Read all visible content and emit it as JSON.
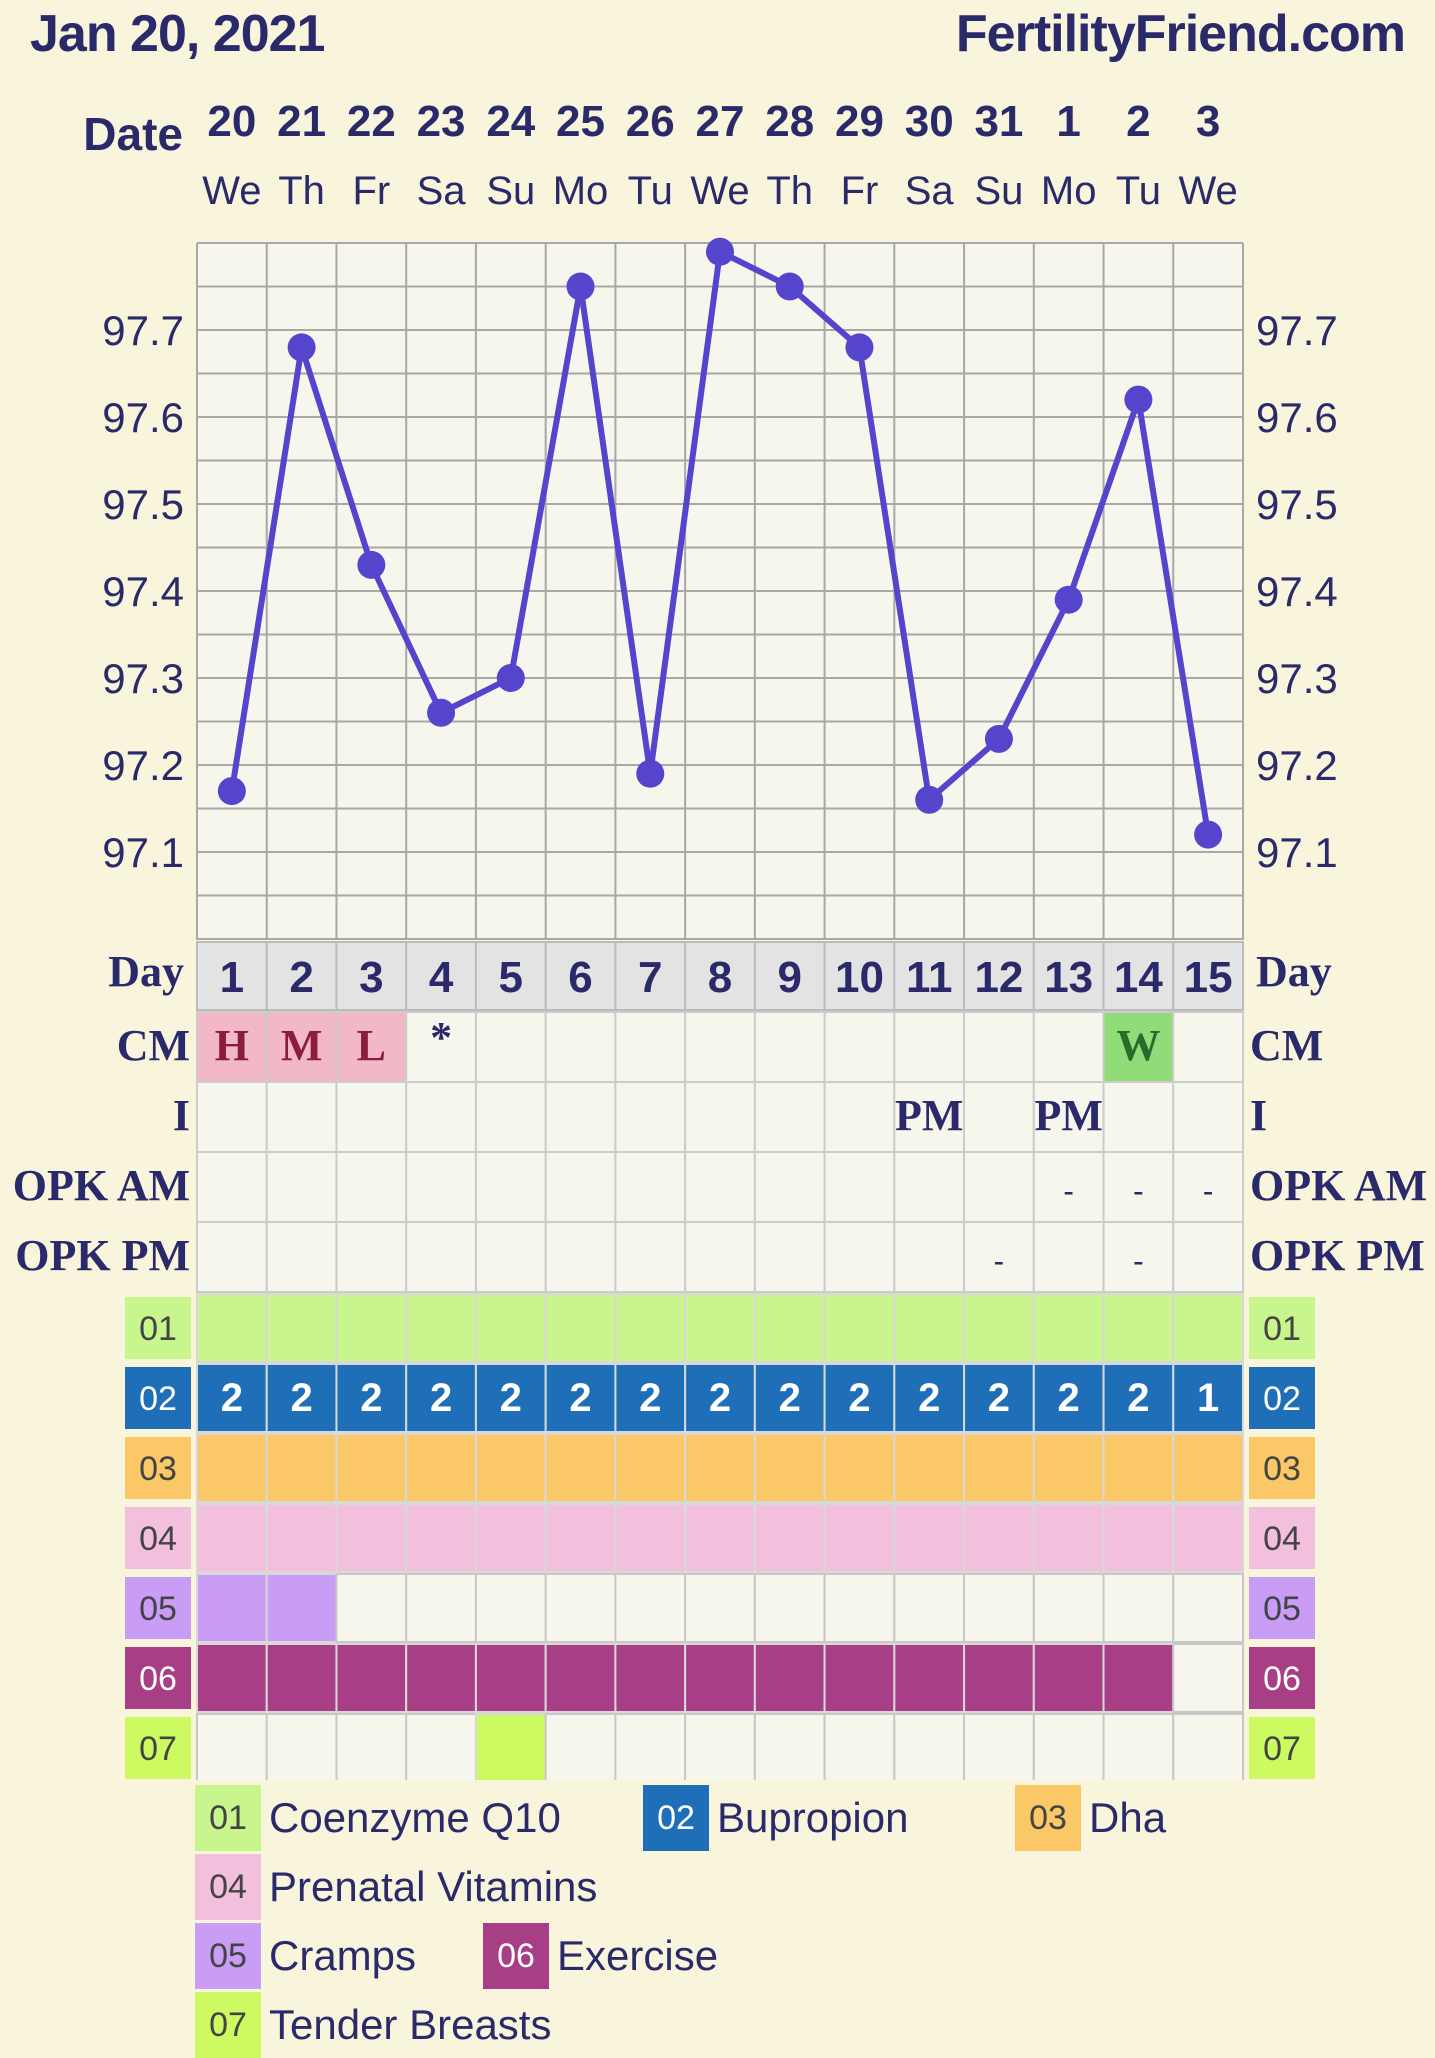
{
  "header": {
    "date": "Jan 20, 2021",
    "site": "FertilityFriend.com"
  },
  "labels": {
    "date": "Date",
    "day": "Day",
    "cm": "CM",
    "i": "I",
    "opk_am": "OPK AM",
    "opk_pm": "OPK PM"
  },
  "chart_data": {
    "type": "line",
    "dates": [
      "20",
      "21",
      "22",
      "23",
      "24",
      "25",
      "26",
      "27",
      "28",
      "29",
      "30",
      "31",
      "1",
      "2",
      "3"
    ],
    "weekdays": [
      "We",
      "Th",
      "Fr",
      "Sa",
      "Su",
      "Mo",
      "Tu",
      "We",
      "Th",
      "Fr",
      "Sa",
      "Su",
      "Mo",
      "Tu",
      "We"
    ],
    "days": [
      "1",
      "2",
      "3",
      "4",
      "5",
      "6",
      "7",
      "8",
      "9",
      "10",
      "11",
      "12",
      "13",
      "14",
      "15"
    ],
    "series": [
      {
        "values": [
          97.17,
          97.68,
          97.43,
          97.26,
          97.3,
          97.75,
          97.19,
          97.79,
          97.75,
          97.68,
          97.16,
          97.23,
          97.39,
          97.62,
          97.12
        ]
      }
    ],
    "y_ticks": [
      "97.7",
      "97.6",
      "97.5",
      "97.4",
      "97.3",
      "97.2",
      "97.1"
    ],
    "ylim": [
      97.0,
      97.8
    ],
    "grid": true,
    "line_color": "#5544cc"
  },
  "rows": {
    "cm": [
      "H",
      "M",
      "L",
      "*",
      "",
      "",
      "",
      "",
      "",
      "",
      "",
      "",
      "",
      "W",
      ""
    ],
    "i": [
      "",
      "",
      "",
      "",
      "",
      "",
      "",
      "",
      "",
      "",
      "PM",
      "",
      "PM",
      "",
      ""
    ],
    "opk_am": [
      "",
      "",
      "",
      "",
      "",
      "",
      "",
      "",
      "",
      "",
      "",
      "",
      "-",
      "-",
      "-"
    ],
    "opk_pm": [
      "",
      "",
      "",
      "",
      "",
      "",
      "",
      "",
      "",
      "",
      "",
      "-",
      "",
      "-",
      ""
    ]
  },
  "cm_colors": {
    "H": "#f2b8c8",
    "M": "#f2b8c8",
    "L": "#f2b8c8",
    "W": "#8fdc78"
  },
  "tracks": [
    {
      "code": "01",
      "name": "Coenzyme Q10",
      "color": "#c8f58c",
      "cells": [
        1,
        1,
        1,
        1,
        1,
        1,
        1,
        1,
        1,
        1,
        1,
        1,
        1,
        1,
        1
      ],
      "values": [
        "",
        "",
        "",
        "",
        "",
        "",
        "",
        "",
        "",
        "",
        "",
        "",
        "",
        "",
        ""
      ]
    },
    {
      "code": "02",
      "name": "Bupropion",
      "color": "#1f6fb8",
      "cells": [
        1,
        1,
        1,
        1,
        1,
        1,
        1,
        1,
        1,
        1,
        1,
        1,
        1,
        1,
        1
      ],
      "values": [
        "2",
        "2",
        "2",
        "2",
        "2",
        "2",
        "2",
        "2",
        "2",
        "2",
        "2",
        "2",
        "2",
        "2",
        "1"
      ]
    },
    {
      "code": "03",
      "name": "Dha",
      "color": "#fbc868",
      "cells": [
        1,
        1,
        1,
        1,
        1,
        1,
        1,
        1,
        1,
        1,
        1,
        1,
        1,
        1,
        1
      ],
      "values": [
        "",
        "",
        "",
        "",
        "",
        "",
        "",
        "",
        "",
        "",
        "",
        "",
        "",
        "",
        ""
      ]
    },
    {
      "code": "04",
      "name": "Prenatal Vitamins",
      "color": "#f2c0dc",
      "cells": [
        1,
        1,
        1,
        1,
        1,
        1,
        1,
        1,
        1,
        1,
        1,
        1,
        1,
        1,
        1
      ],
      "values": [
        "",
        "",
        "",
        "",
        "",
        "",
        "",
        "",
        "",
        "",
        "",
        "",
        "",
        "",
        ""
      ]
    },
    {
      "code": "05",
      "name": "Cramps",
      "color": "#c99cf6",
      "cells": [
        1,
        1,
        0,
        0,
        0,
        0,
        0,
        0,
        0,
        0,
        0,
        0,
        0,
        0,
        0
      ],
      "values": [
        "",
        "",
        "",
        "",
        "",
        "",
        "",
        "",
        "",
        "",
        "",
        "",
        "",
        "",
        ""
      ]
    },
    {
      "code": "06",
      "name": "Exercise",
      "color": "#a83e86",
      "cells": [
        1,
        1,
        1,
        1,
        1,
        1,
        1,
        1,
        1,
        1,
        1,
        1,
        1,
        1,
        0
      ],
      "values": [
        "",
        "",
        "",
        "",
        "",
        "",
        "",
        "",
        "",
        "",
        "",
        "",
        "",
        "",
        ""
      ]
    },
    {
      "code": "07",
      "name": "Tender Breasts",
      "color": "#ccfa60",
      "cells": [
        0,
        0,
        0,
        0,
        1,
        0,
        0,
        0,
        0,
        0,
        0,
        0,
        0,
        0,
        0
      ],
      "values": [
        "",
        "",
        "",
        "",
        "",
        "",
        "",
        "",
        "",
        "",
        "",
        "",
        "",
        "",
        ""
      ]
    }
  ]
}
